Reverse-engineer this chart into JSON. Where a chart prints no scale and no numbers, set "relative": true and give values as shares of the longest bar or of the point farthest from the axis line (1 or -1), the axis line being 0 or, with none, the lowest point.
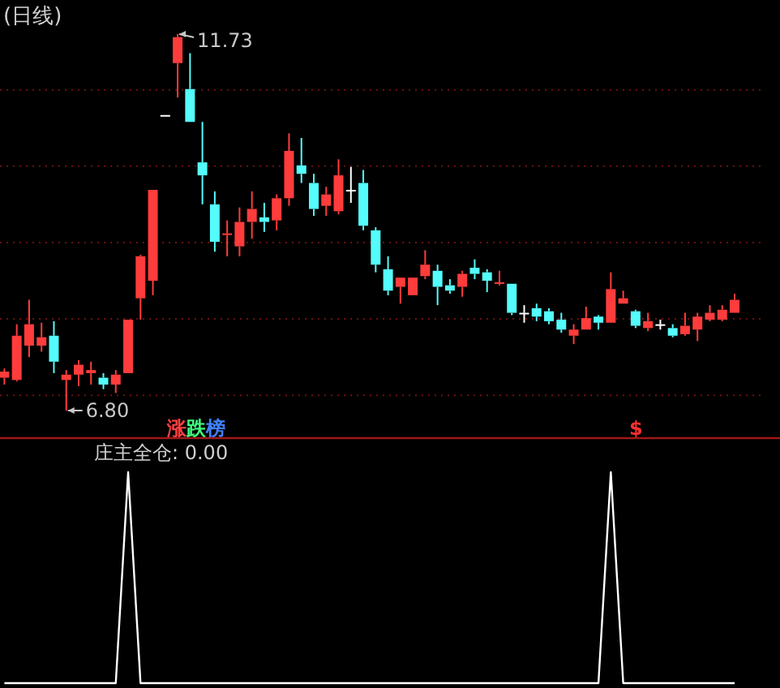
{
  "chart_data": [
    {
      "type": "candlestick",
      "title": "(日线)",
      "categories": [
        null,
        null,
        null,
        null,
        null,
        null,
        null,
        null,
        null,
        null,
        null,
        null,
        null,
        null,
        null,
        null,
        null,
        null,
        null,
        null,
        null,
        null,
        null,
        null,
        null,
        null,
        null,
        null,
        null,
        null,
        null,
        null,
        null,
        null,
        null,
        null,
        null,
        null,
        null,
        null,
        null,
        null,
        null,
        null,
        null,
        null,
        null,
        null,
        null,
        null,
        null,
        null,
        null,
        null,
        null,
        null,
        null,
        null,
        null,
        null
      ],
      "ohlc": [
        [
          7.23,
          7.35,
          7.14,
          7.31
        ],
        [
          7.2,
          7.93,
          7.18,
          7.78
        ],
        [
          7.65,
          8.25,
          7.5,
          7.93
        ],
        [
          7.65,
          7.95,
          7.57,
          7.76
        ],
        [
          7.78,
          7.97,
          7.29,
          7.44
        ],
        [
          7.2,
          7.33,
          6.8,
          7.27
        ],
        [
          7.27,
          7.46,
          7.12,
          7.4
        ],
        [
          7.29,
          7.44,
          7.14,
          7.33
        ],
        [
          7.23,
          7.29,
          7.08,
          7.14
        ],
        [
          7.14,
          7.33,
          7.03,
          7.27
        ],
        [
          7.29,
          7.99,
          7.29,
          7.99
        ],
        [
          8.27,
          8.84,
          7.99,
          8.82
        ],
        [
          8.5,
          9.69,
          8.31,
          9.69
        ],
        [
          10.67,
          10.67,
          10.67,
          10.67
        ],
        [
          11.35,
          11.73,
          10.9,
          11.69
        ],
        [
          11.01,
          11.48,
          10.58,
          10.58
        ],
        [
          10.05,
          10.58,
          9.5,
          9.88
        ],
        [
          9.5,
          9.67,
          8.88,
          9.01
        ],
        [
          9.1,
          9.29,
          8.82,
          9.12
        ],
        [
          8.95,
          9.46,
          8.82,
          9.27
        ],
        [
          9.27,
          9.67,
          9.05,
          9.44
        ],
        [
          9.33,
          9.52,
          9.14,
          9.27
        ],
        [
          9.29,
          9.63,
          9.16,
          9.58
        ],
        [
          9.58,
          10.43,
          9.48,
          10.2
        ],
        [
          10.01,
          10.37,
          9.78,
          9.9
        ],
        [
          9.78,
          9.9,
          9.35,
          9.44
        ],
        [
          9.48,
          9.73,
          9.35,
          9.63
        ],
        [
          9.41,
          10.09,
          9.37,
          9.88
        ],
        [
          9.69,
          9.99,
          9.52,
          9.69
        ],
        [
          9.78,
          9.95,
          9.16,
          9.22
        ],
        [
          9.16,
          9.2,
          8.61,
          8.71
        ],
        [
          8.65,
          8.82,
          8.31,
          8.37
        ],
        [
          8.42,
          8.54,
          8.2,
          8.54
        ],
        [
          8.31,
          8.54,
          8.31,
          8.54
        ],
        [
          8.56,
          8.9,
          8.52,
          8.71
        ],
        [
          8.63,
          8.71,
          8.18,
          8.42
        ],
        [
          8.44,
          8.52,
          8.33,
          8.37
        ],
        [
          8.42,
          8.63,
          8.29,
          8.59
        ],
        [
          8.67,
          8.78,
          8.52,
          8.59
        ],
        [
          8.61,
          8.65,
          8.35,
          8.5
        ],
        [
          8.46,
          8.63,
          8.44,
          8.48
        ],
        [
          8.46,
          8.46,
          8.05,
          8.08
        ],
        [
          8.08,
          8.18,
          7.95,
          8.08
        ],
        [
          8.14,
          8.2,
          7.97,
          8.03
        ],
        [
          8.1,
          8.14,
          7.93,
          7.97
        ],
        [
          7.99,
          8.08,
          7.82,
          7.86
        ],
        [
          7.78,
          7.93,
          7.67,
          7.86
        ],
        [
          7.86,
          8.16,
          7.86,
          8.01
        ],
        [
          8.03,
          8.05,
          7.86,
          7.95
        ],
        [
          7.95,
          8.61,
          7.95,
          8.39
        ],
        [
          8.2,
          8.37,
          8.2,
          8.27
        ],
        [
          8.1,
          8.12,
          7.88,
          7.91
        ],
        [
          7.88,
          8.08,
          7.84,
          7.97
        ],
        [
          7.93,
          7.99,
          7.86,
          7.93
        ],
        [
          7.88,
          7.93,
          7.76,
          7.78
        ],
        [
          7.8,
          8.08,
          7.78,
          7.91
        ],
        [
          7.86,
          8.08,
          7.71,
          8.03
        ],
        [
          7.99,
          8.18,
          7.97,
          8.08
        ],
        [
          7.99,
          8.18,
          7.97,
          8.12
        ],
        [
          8.08,
          8.33,
          8.08,
          8.25
        ]
      ],
      "yticks": [
        {
          "value": 7,
          "label": null
        },
        {
          "value": 8,
          "label": null
        },
        {
          "value": 9,
          "label": null
        },
        {
          "value": 10,
          "label": null
        },
        {
          "value": 11,
          "label": null
        }
      ],
      "grid": "y",
      "annotations": [
        "11.73",
        "6.80",
        "涨跌榜",
        "$"
      ]
    },
    {
      "type": "line",
      "title": "庄主全仓: 0.00",
      "relative": true,
      "categories": [
        null,
        null,
        null,
        null,
        null,
        null,
        null,
        null,
        null,
        null,
        null,
        null,
        null,
        null,
        null,
        null,
        null,
        null,
        null,
        null,
        null,
        null,
        null,
        null,
        null,
        null,
        null,
        null,
        null,
        null,
        null,
        null,
        null,
        null,
        null,
        null,
        null,
        null,
        null,
        null,
        null,
        null,
        null,
        null,
        null,
        null,
        null,
        null,
        null,
        null,
        null,
        null,
        null,
        null,
        null,
        null,
        null,
        null,
        null,
        null
      ],
      "series": [
        {
          "color": "#ffffff",
          "values": [
            0,
            0,
            0,
            0,
            0,
            0,
            0,
            0,
            0,
            0,
            1,
            0,
            0,
            0,
            0,
            0,
            0,
            0,
            0,
            0,
            0,
            0,
            0,
            0,
            0,
            0,
            0,
            0,
            0,
            0,
            0,
            0,
            0,
            0,
            0,
            0,
            0,
            0,
            0,
            0,
            0,
            0,
            0,
            0,
            0,
            0,
            0,
            0,
            0,
            1,
            0,
            0,
            0,
            0,
            0,
            0,
            0,
            0,
            0,
            0
          ]
        }
      ],
      "marker": "none",
      "line_style": "solid"
    }
  ]
}
